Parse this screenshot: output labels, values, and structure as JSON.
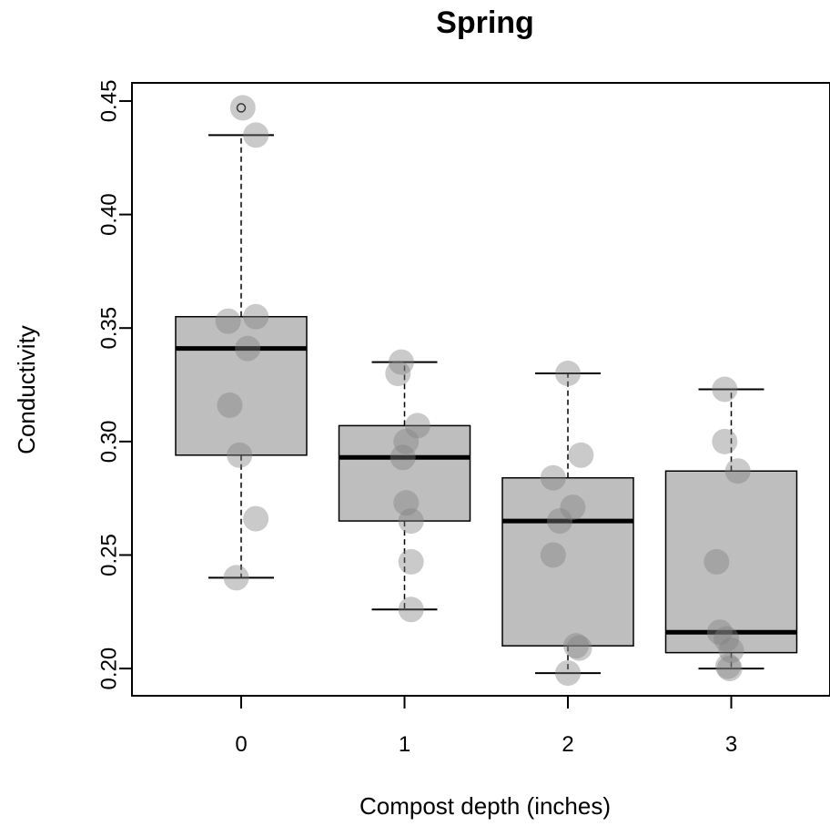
{
  "chart_data": {
    "type": "boxplot",
    "title": "Spring",
    "xlabel": "Compost depth (inches)",
    "ylabel": "Conductivity",
    "categories": [
      "0",
      "1",
      "2",
      "3"
    ],
    "y_ticks": [
      "0.20",
      "0.25",
      "0.30",
      "0.35",
      "0.40",
      "0.45"
    ],
    "ylim": [
      0.188,
      0.458
    ],
    "boxes": [
      {
        "category": "0",
        "whisker_low": 0.24,
        "q1": 0.294,
        "median": 0.341,
        "q3": 0.355,
        "whisker_high": 0.435,
        "outliers": [
          0.447
        ]
      },
      {
        "category": "1",
        "whisker_low": 0.226,
        "q1": 0.265,
        "median": 0.293,
        "q3": 0.307,
        "whisker_high": 0.335,
        "outliers": []
      },
      {
        "category": "2",
        "whisker_low": 0.198,
        "q1": 0.21,
        "median": 0.265,
        "q3": 0.284,
        "whisker_high": 0.33,
        "outliers": []
      },
      {
        "category": "3",
        "whisker_low": 0.2,
        "q1": 0.207,
        "median": 0.216,
        "q3": 0.287,
        "whisker_high": 0.323,
        "outliers": []
      }
    ],
    "points": [
      {
        "x": 0,
        "jitter": 0.01,
        "y": 0.447
      },
      {
        "x": 0,
        "jitter": 0.09,
        "y": 0.435
      },
      {
        "x": 0,
        "jitter": -0.08,
        "y": 0.353
      },
      {
        "x": 0,
        "jitter": 0.09,
        "y": 0.355
      },
      {
        "x": 0,
        "jitter": 0.04,
        "y": 0.341
      },
      {
        "x": 0,
        "jitter": -0.07,
        "y": 0.316
      },
      {
        "x": 0,
        "jitter": -0.01,
        "y": 0.294
      },
      {
        "x": 0,
        "jitter": 0.09,
        "y": 0.266
      },
      {
        "x": 0,
        "jitter": -0.03,
        "y": 0.24
      },
      {
        "x": 1,
        "jitter": -0.02,
        "y": 0.335
      },
      {
        "x": 1,
        "jitter": -0.04,
        "y": 0.33
      },
      {
        "x": 1,
        "jitter": 0.08,
        "y": 0.307
      },
      {
        "x": 1,
        "jitter": 0.01,
        "y": 0.3
      },
      {
        "x": 1,
        "jitter": -0.01,
        "y": 0.293
      },
      {
        "x": 1,
        "jitter": 0.01,
        "y": 0.273
      },
      {
        "x": 1,
        "jitter": 0.04,
        "y": 0.265
      },
      {
        "x": 1,
        "jitter": 0.04,
        "y": 0.247
      },
      {
        "x": 1,
        "jitter": 0.04,
        "y": 0.226
      },
      {
        "x": 2,
        "jitter": 0.0,
        "y": 0.33
      },
      {
        "x": 2,
        "jitter": 0.08,
        "y": 0.294
      },
      {
        "x": 2,
        "jitter": -0.09,
        "y": 0.284
      },
      {
        "x": 2,
        "jitter": 0.03,
        "y": 0.271
      },
      {
        "x": 2,
        "jitter": -0.05,
        "y": 0.265
      },
      {
        "x": 2,
        "jitter": -0.09,
        "y": 0.25
      },
      {
        "x": 2,
        "jitter": 0.05,
        "y": 0.21
      },
      {
        "x": 2,
        "jitter": 0.07,
        "y": 0.209
      },
      {
        "x": 2,
        "jitter": 0.0,
        "y": 0.198
      },
      {
        "x": 3,
        "jitter": -0.04,
        "y": 0.323
      },
      {
        "x": 3,
        "jitter": -0.04,
        "y": 0.3
      },
      {
        "x": 3,
        "jitter": 0.04,
        "y": 0.287
      },
      {
        "x": 3,
        "jitter": -0.09,
        "y": 0.247
      },
      {
        "x": 3,
        "jitter": -0.07,
        "y": 0.216
      },
      {
        "x": 3,
        "jitter": -0.03,
        "y": 0.213
      },
      {
        "x": 3,
        "jitter": 0.0,
        "y": 0.208
      },
      {
        "x": 3,
        "jitter": -0.02,
        "y": 0.201
      },
      {
        "x": 3,
        "jitter": -0.01,
        "y": 0.2
      }
    ],
    "colors": {
      "box_fill": "#bebebe",
      "point_fill": "rgba(128,128,128,0.42)",
      "line": "#000000"
    },
    "grid": false
  }
}
